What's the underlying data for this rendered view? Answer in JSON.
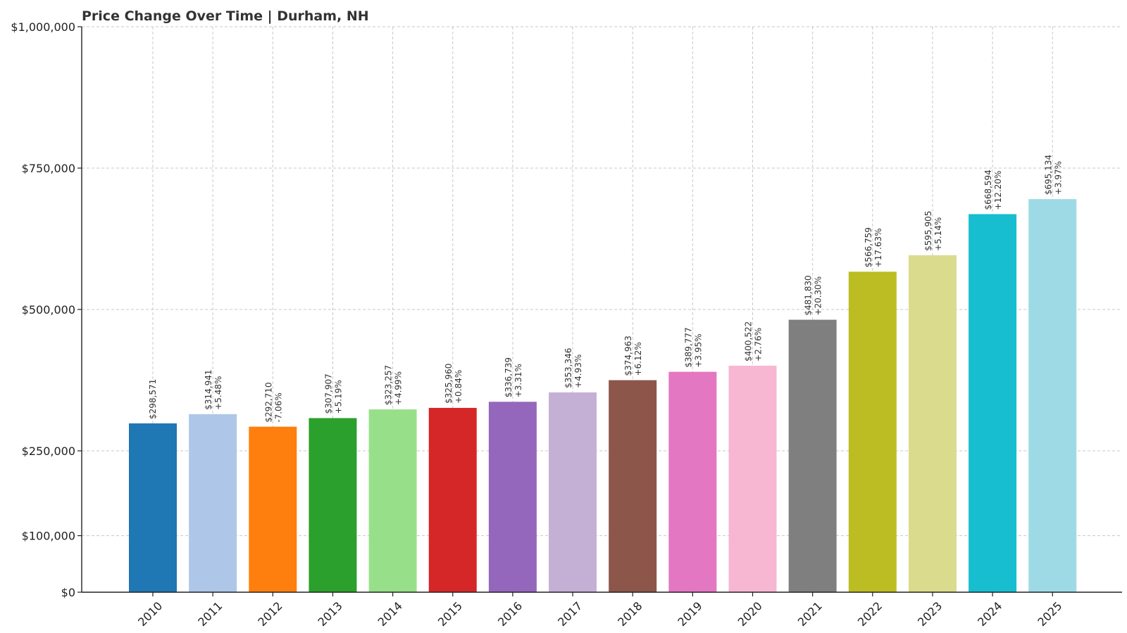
{
  "chart_data": {
    "type": "bar",
    "title": "Price Change Over Time | Durham, NH",
    "xlabel": "",
    "ylabel": "",
    "categories": [
      "2010",
      "2011",
      "2012",
      "2013",
      "2014",
      "2015",
      "2016",
      "2017",
      "2018",
      "2019",
      "2020",
      "2021",
      "2022",
      "2023",
      "2024",
      "2025"
    ],
    "values": [
      298571,
      314941,
      292710,
      307907,
      323257,
      325960,
      336739,
      353346,
      374963,
      389777,
      400522,
      481830,
      566759,
      595905,
      668594,
      695134
    ],
    "value_labels": [
      "$298,571",
      "$314,941",
      "$292,710",
      "$307,907",
      "$323,257",
      "$325,960",
      "$336,739",
      "$353,346",
      "$374,963",
      "$389,777",
      "$400,522",
      "$481,830",
      "$566,759",
      "$595,905",
      "$668,594",
      "$695,134"
    ],
    "change_labels": [
      "",
      "+5.48%",
      "-7.06%",
      "+5.19%",
      "+4.99%",
      "+0.84%",
      "+3.31%",
      "+4.93%",
      "+6.12%",
      "+3.95%",
      "+2.76%",
      "+20.30%",
      "+17.63%",
      "+5.14%",
      "+12.20%",
      "+3.97%"
    ],
    "colors": [
      "#1f77b4",
      "#aec7e8",
      "#ff7f0e",
      "#2ca02c",
      "#98df8a",
      "#d62728",
      "#9467bd",
      "#c5b0d5",
      "#8c564b",
      "#e377c2",
      "#f7b6d2",
      "#7f7f7f",
      "#bcbd22",
      "#dbdb8d",
      "#17becf",
      "#9edae5"
    ],
    "yticks": [
      0,
      100000,
      250000,
      500000,
      750000,
      1000000
    ],
    "ytick_labels": [
      "$0",
      "$100,000",
      "$250,000",
      "$500,000",
      "$750,000",
      "$1,000,000"
    ],
    "ylim": [
      0,
      1000000
    ],
    "grid": true,
    "legend": "none"
  }
}
